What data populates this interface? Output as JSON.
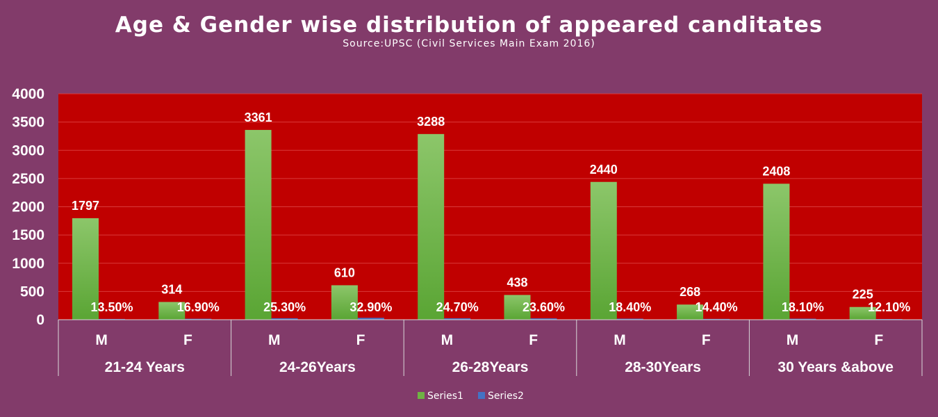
{
  "chart_data": {
    "type": "bar",
    "title": "Age & Gender wise distribution of appeared canditates",
    "subtitle": "Source:UPSC (Civil Services Main Exam 2016)",
    "groups": [
      "21-24 Years",
      "24-26Years",
      "26-28Years",
      "28-30Years",
      "30 Years &above"
    ],
    "categories": [
      "M",
      "F",
      "M",
      "F",
      "M",
      "F",
      "M",
      "F",
      "M",
      "F"
    ],
    "series": [
      {
        "name": "Series1",
        "values": [
          1797,
          314,
          3361,
          610,
          3288,
          438,
          2440,
          268,
          2408,
          225
        ],
        "color": "#6fb244"
      },
      {
        "name": "Series2",
        "values": [
          13.5,
          16.9,
          25.3,
          32.9,
          24.7,
          23.6,
          18.4,
          14.4,
          18.1,
          12.1
        ],
        "labels": [
          "13.50%",
          "16.90%",
          "25.30%",
          "32.90%",
          "24.70%",
          "23.60%",
          "18.40%",
          "14.40%",
          "18.10%",
          "12.10%"
        ],
        "color": "#4472c4"
      }
    ],
    "ylim": [
      0,
      4000
    ],
    "yticks": [
      "0",
      "500",
      "1000",
      "1500",
      "2000",
      "2500",
      "3000",
      "3500",
      "4000"
    ],
    "grid": true,
    "legend": "bottom-center",
    "plot_background": "#c00000",
    "page_background": "#823b6a"
  }
}
